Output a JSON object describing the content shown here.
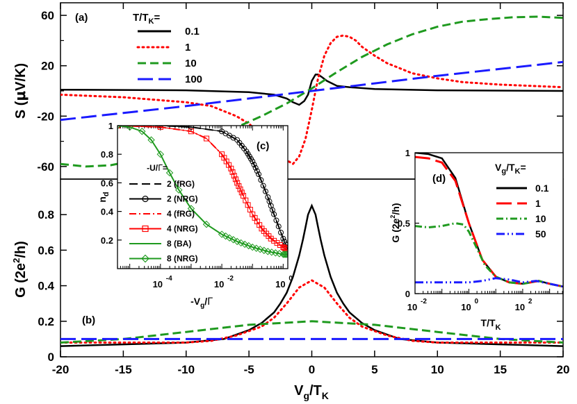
{
  "colors": {
    "black": "#000000",
    "red": "#ff0000",
    "green": "#1f9a1f",
    "blue": "#1a1aff"
  },
  "chart_data": [
    {
      "id": "a",
      "panel": "(a)",
      "type": "line",
      "xlabel": "V_g/T_K",
      "ylabel": "S (μV/K)",
      "xlim": [
        -20,
        20
      ],
      "ylim": [
        -70,
        70
      ],
      "yticks": [
        -60,
        -20,
        20,
        60
      ],
      "ytick_labels": [
        "-60",
        "-20",
        "20",
        "60"
      ],
      "legend": {
        "title": "T/T_K=",
        "position": "top-left"
      },
      "series": [
        {
          "name": "0.1",
          "color": "black",
          "dash": "solid",
          "x": [
            -20,
            -10,
            -5,
            -3,
            -2,
            -1.5,
            -1,
            -0.6,
            -0.3,
            0,
            0.3,
            0.5,
            0.8,
            1.2,
            2,
            3,
            5,
            10,
            20
          ],
          "y": [
            1,
            0.5,
            -1,
            -3,
            -6,
            -9,
            -11,
            -8,
            -3,
            8,
            13,
            13,
            11,
            8,
            4,
            3,
            1.5,
            0.5,
            0
          ]
        },
        {
          "name": "1",
          "color": "red",
          "dash": "dot",
          "x": [
            -20,
            -15,
            -10,
            -8,
            -6,
            -5,
            -4,
            -3,
            -2,
            -1.5,
            -1,
            -0.5,
            0,
            0.5,
            1,
            1.5,
            2,
            2.5,
            3,
            3.5,
            4,
            5,
            6,
            7,
            8,
            10,
            12,
            15,
            20
          ],
          "y": [
            -3,
            -5,
            -9,
            -12,
            -20,
            -26,
            -35,
            -45,
            -55,
            -58,
            -52,
            -38,
            -15,
            10,
            28,
            38,
            43,
            44,
            43,
            40,
            35,
            28,
            22,
            18,
            14,
            10,
            7,
            5,
            3
          ]
        },
        {
          "name": "10",
          "color": "green",
          "dash": "dashed",
          "x": [
            -20,
            -18,
            -16,
            -14,
            -12,
            -10,
            -8,
            -6,
            -4,
            -2,
            0,
            2,
            4,
            6,
            8,
            10,
            12,
            14,
            16,
            18,
            20
          ],
          "y": [
            -58,
            -60,
            -59,
            -55,
            -48,
            -44,
            -38,
            -29,
            -20,
            -10,
            2,
            15,
            27,
            37,
            45,
            51,
            55,
            57,
            58.5,
            59,
            58
          ]
        },
        {
          "name": "100",
          "color": "blue",
          "dash": "longdash",
          "x": [
            -20,
            -15,
            -10,
            -5,
            0,
            5,
            10,
            15,
            20
          ],
          "y": [
            -23,
            -17.5,
            -12,
            -6,
            0,
            6,
            12,
            17.5,
            23
          ]
        }
      ]
    },
    {
      "id": "b",
      "panel": "(b)",
      "type": "line",
      "xlabel": "V_g/T_K",
      "ylabel": "G (2e²/h)",
      "xlim": [
        -20,
        20
      ],
      "ylim": [
        0,
        1.0
      ],
      "xticks": [
        -20,
        -15,
        -10,
        -5,
        0,
        5,
        10,
        15,
        20
      ],
      "xtick_labels": [
        "-20",
        "-15",
        "-10",
        "-5",
        "0",
        "5",
        "10",
        "15",
        "20"
      ],
      "yticks": [
        0,
        0.2,
        0.4,
        0.6,
        0.8
      ],
      "ytick_labels": [
        "0",
        "0.2",
        "0.4",
        "0.6",
        "0.8"
      ],
      "series": [
        {
          "name": "0.1",
          "color": "black",
          "dash": "solid",
          "x": [
            -20,
            -15,
            -10,
            -7,
            -5,
            -4,
            -3,
            -2.5,
            -2,
            -1.5,
            -1,
            -0.7,
            -0.5,
            -0.3,
            0,
            0.3,
            0.5,
            0.7,
            1,
            1.5,
            2,
            2.5,
            3,
            4,
            5,
            7,
            10,
            15,
            20
          ],
          "y": [
            0.06,
            0.07,
            0.08,
            0.1,
            0.15,
            0.19,
            0.25,
            0.3,
            0.36,
            0.45,
            0.57,
            0.66,
            0.73,
            0.8,
            0.85,
            0.8,
            0.73,
            0.66,
            0.57,
            0.45,
            0.36,
            0.3,
            0.25,
            0.19,
            0.15,
            0.1,
            0.08,
            0.07,
            0.06
          ]
        },
        {
          "name": "1",
          "color": "red",
          "dash": "dot",
          "x": [
            -20,
            -15,
            -10,
            -8,
            -6,
            -4,
            -3,
            -2,
            -1,
            0,
            1,
            2,
            3,
            4,
            6,
            8,
            10,
            15,
            20
          ],
          "y": [
            0.08,
            0.08,
            0.08,
            0.09,
            0.12,
            0.17,
            0.22,
            0.3,
            0.39,
            0.43,
            0.39,
            0.3,
            0.22,
            0.17,
            0.12,
            0.09,
            0.08,
            0.08,
            0.08
          ]
        },
        {
          "name": "10",
          "color": "green",
          "dash": "dashed",
          "x": [
            -20,
            -15,
            -10,
            -5,
            0,
            5,
            10,
            15,
            20
          ],
          "y": [
            0.08,
            0.1,
            0.14,
            0.18,
            0.2,
            0.18,
            0.14,
            0.1,
            0.08
          ]
        },
        {
          "name": "100",
          "color": "blue",
          "dash": "longdash",
          "x": [
            -20,
            20
          ],
          "y": [
            0.1,
            0.1
          ]
        }
      ]
    },
    {
      "id": "c",
      "panel": "(c)",
      "type": "line",
      "xscale": "log",
      "xlabel": "-V_g/Γ",
      "ylabel": "n_d",
      "xlim": [
        -5.4,
        0.15
      ],
      "ylim": [
        0,
        1.0
      ],
      "xticks": [
        -4,
        -2,
        0
      ],
      "xtick_labels": [
        "10",
        "10",
        "10"
      ],
      "xtick_exps": [
        "-4",
        "-2",
        "0"
      ],
      "yticks": [
        0.2,
        0.4,
        0.6,
        0.8,
        1.0
      ],
      "ytick_labels": [
        "0.2",
        "0.4",
        "0.6",
        "0.8",
        "1"
      ],
      "legend": {
        "title": "-U/Γ=",
        "position": "lower-left"
      },
      "series": [
        {
          "name": "2 (fRG)",
          "color": "black",
          "dash": "dashed",
          "marker": "none",
          "x_log10": [
            -5.4,
            -4,
            -3,
            -2,
            -1.5,
            -1.2,
            -1,
            -0.8,
            -0.5,
            -0.3,
            0,
            0.15
          ],
          "y": [
            1,
            1,
            0.99,
            0.96,
            0.9,
            0.82,
            0.75,
            0.66,
            0.5,
            0.38,
            0.21,
            0.13
          ]
        },
        {
          "name": "2 (NRG)",
          "color": "black",
          "dash": "solid",
          "marker": "circle",
          "x_log10": [
            -5.4,
            -4,
            -3,
            -2,
            -1.5,
            -1.2,
            -1,
            -0.8,
            -0.5,
            -0.3,
            0,
            0.15
          ],
          "y": [
            1,
            1,
            0.99,
            0.96,
            0.9,
            0.82,
            0.75,
            0.66,
            0.5,
            0.38,
            0.21,
            0.13
          ]
        },
        {
          "name": "4 (fRG)",
          "color": "red",
          "dash": "dashdot",
          "marker": "none",
          "x_log10": [
            -5.4,
            -4,
            -3,
            -2.5,
            -2,
            -1.7,
            -1.5,
            -1.3,
            -1,
            -0.7,
            -0.4,
            0,
            0.15
          ],
          "y": [
            1,
            0.99,
            0.96,
            0.91,
            0.8,
            0.7,
            0.6,
            0.51,
            0.38,
            0.28,
            0.21,
            0.15,
            0.13
          ]
        },
        {
          "name": "4 (NRG)",
          "color": "red",
          "dash": "solid",
          "marker": "square",
          "x_log10": [
            -5.4,
            -4,
            -3,
            -2.5,
            -2,
            -1.7,
            -1.5,
            -1.3,
            -1,
            -0.7,
            -0.4,
            0,
            0.15
          ],
          "y": [
            1,
            0.99,
            0.96,
            0.91,
            0.8,
            0.7,
            0.6,
            0.51,
            0.38,
            0.28,
            0.21,
            0.15,
            0.13
          ]
        },
        {
          "name": "8 (BA)",
          "color": "green",
          "dash": "solid",
          "marker": "none",
          "x_log10": [
            -5.4,
            -5,
            -4.6,
            -4.3,
            -4,
            -3.7,
            -3.4,
            -3,
            -2.5,
            -2,
            -1.5,
            -1,
            -0.5,
            0,
            0.15
          ],
          "y": [
            1,
            0.99,
            0.96,
            0.9,
            0.8,
            0.67,
            0.55,
            0.42,
            0.31,
            0.24,
            0.19,
            0.15,
            0.12,
            0.1,
            0.1
          ]
        },
        {
          "name": "8 (NRG)",
          "color": "green",
          "dash": "solid",
          "marker": "diamond",
          "x_log10": [
            -5.4,
            -5,
            -4.6,
            -4.3,
            -4,
            -3.7,
            -3.4,
            -3,
            -2.5,
            -2,
            -1.5,
            -1,
            -0.5,
            0,
            0.15
          ],
          "y": [
            1,
            0.99,
            0.96,
            0.9,
            0.8,
            0.67,
            0.55,
            0.42,
            0.31,
            0.24,
            0.19,
            0.15,
            0.12,
            0.1,
            0.1
          ]
        }
      ]
    },
    {
      "id": "d",
      "panel": "(d)",
      "type": "line",
      "xscale": "log",
      "xlabel": "T/T_K",
      "ylabel": "G (2e²/h)",
      "xlim": [
        -2,
        3.5
      ],
      "ylim": [
        0,
        1.0
      ],
      "xticks": [
        -2,
        0,
        2
      ],
      "xtick_labels": [
        "10",
        "10",
        "10"
      ],
      "xtick_exps": [
        "-2",
        "0",
        "2"
      ],
      "yticks": [
        0,
        0.5,
        1.0
      ],
      "ytick_labels": [
        "0",
        "0.5",
        "1"
      ],
      "legend": {
        "title": "V_g/T_K=",
        "position": "top-right"
      },
      "series": [
        {
          "name": "0.1",
          "color": "black",
          "dash": "solid",
          "x_log10": [
            -2,
            -1.5,
            -1,
            -0.5,
            0,
            0.5,
            1,
            1.5,
            2,
            2.3,
            2.6,
            3,
            3.5
          ],
          "y": [
            1,
            0.99,
            0.96,
            0.82,
            0.5,
            0.24,
            0.12,
            0.08,
            0.07,
            0.08,
            0.09,
            0.07,
            0.05
          ]
        },
        {
          "name": "1",
          "color": "red",
          "dash": "longdash",
          "x_log10": [
            -2,
            -1.5,
            -1,
            -0.5,
            0,
            0.5,
            1,
            1.5,
            2,
            2.3,
            2.6,
            3,
            3.5
          ],
          "y": [
            0.97,
            0.96,
            0.93,
            0.8,
            0.5,
            0.24,
            0.12,
            0.08,
            0.07,
            0.08,
            0.09,
            0.07,
            0.05
          ]
        },
        {
          "name": "10",
          "color": "green",
          "dash": "dashdot",
          "x_log10": [
            -2,
            -1.5,
            -1,
            -0.5,
            -0.2,
            0,
            0.3,
            0.6,
            1,
            1.5,
            2,
            2.3,
            2.6,
            3,
            3.5
          ],
          "y": [
            0.48,
            0.47,
            0.48,
            0.5,
            0.49,
            0.44,
            0.32,
            0.2,
            0.12,
            0.08,
            0.07,
            0.08,
            0.09,
            0.07,
            0.05
          ]
        },
        {
          "name": "50",
          "color": "blue",
          "dash": "dashdotdot",
          "x_log10": [
            -2,
            -1,
            0,
            0.5,
            1,
            1.5,
            2,
            2.5,
            3,
            3.5
          ],
          "y": [
            0.08,
            0.08,
            0.08,
            0.09,
            0.11,
            0.1,
            0.08,
            0.09,
            0.07,
            0.05
          ]
        }
      ]
    }
  ]
}
